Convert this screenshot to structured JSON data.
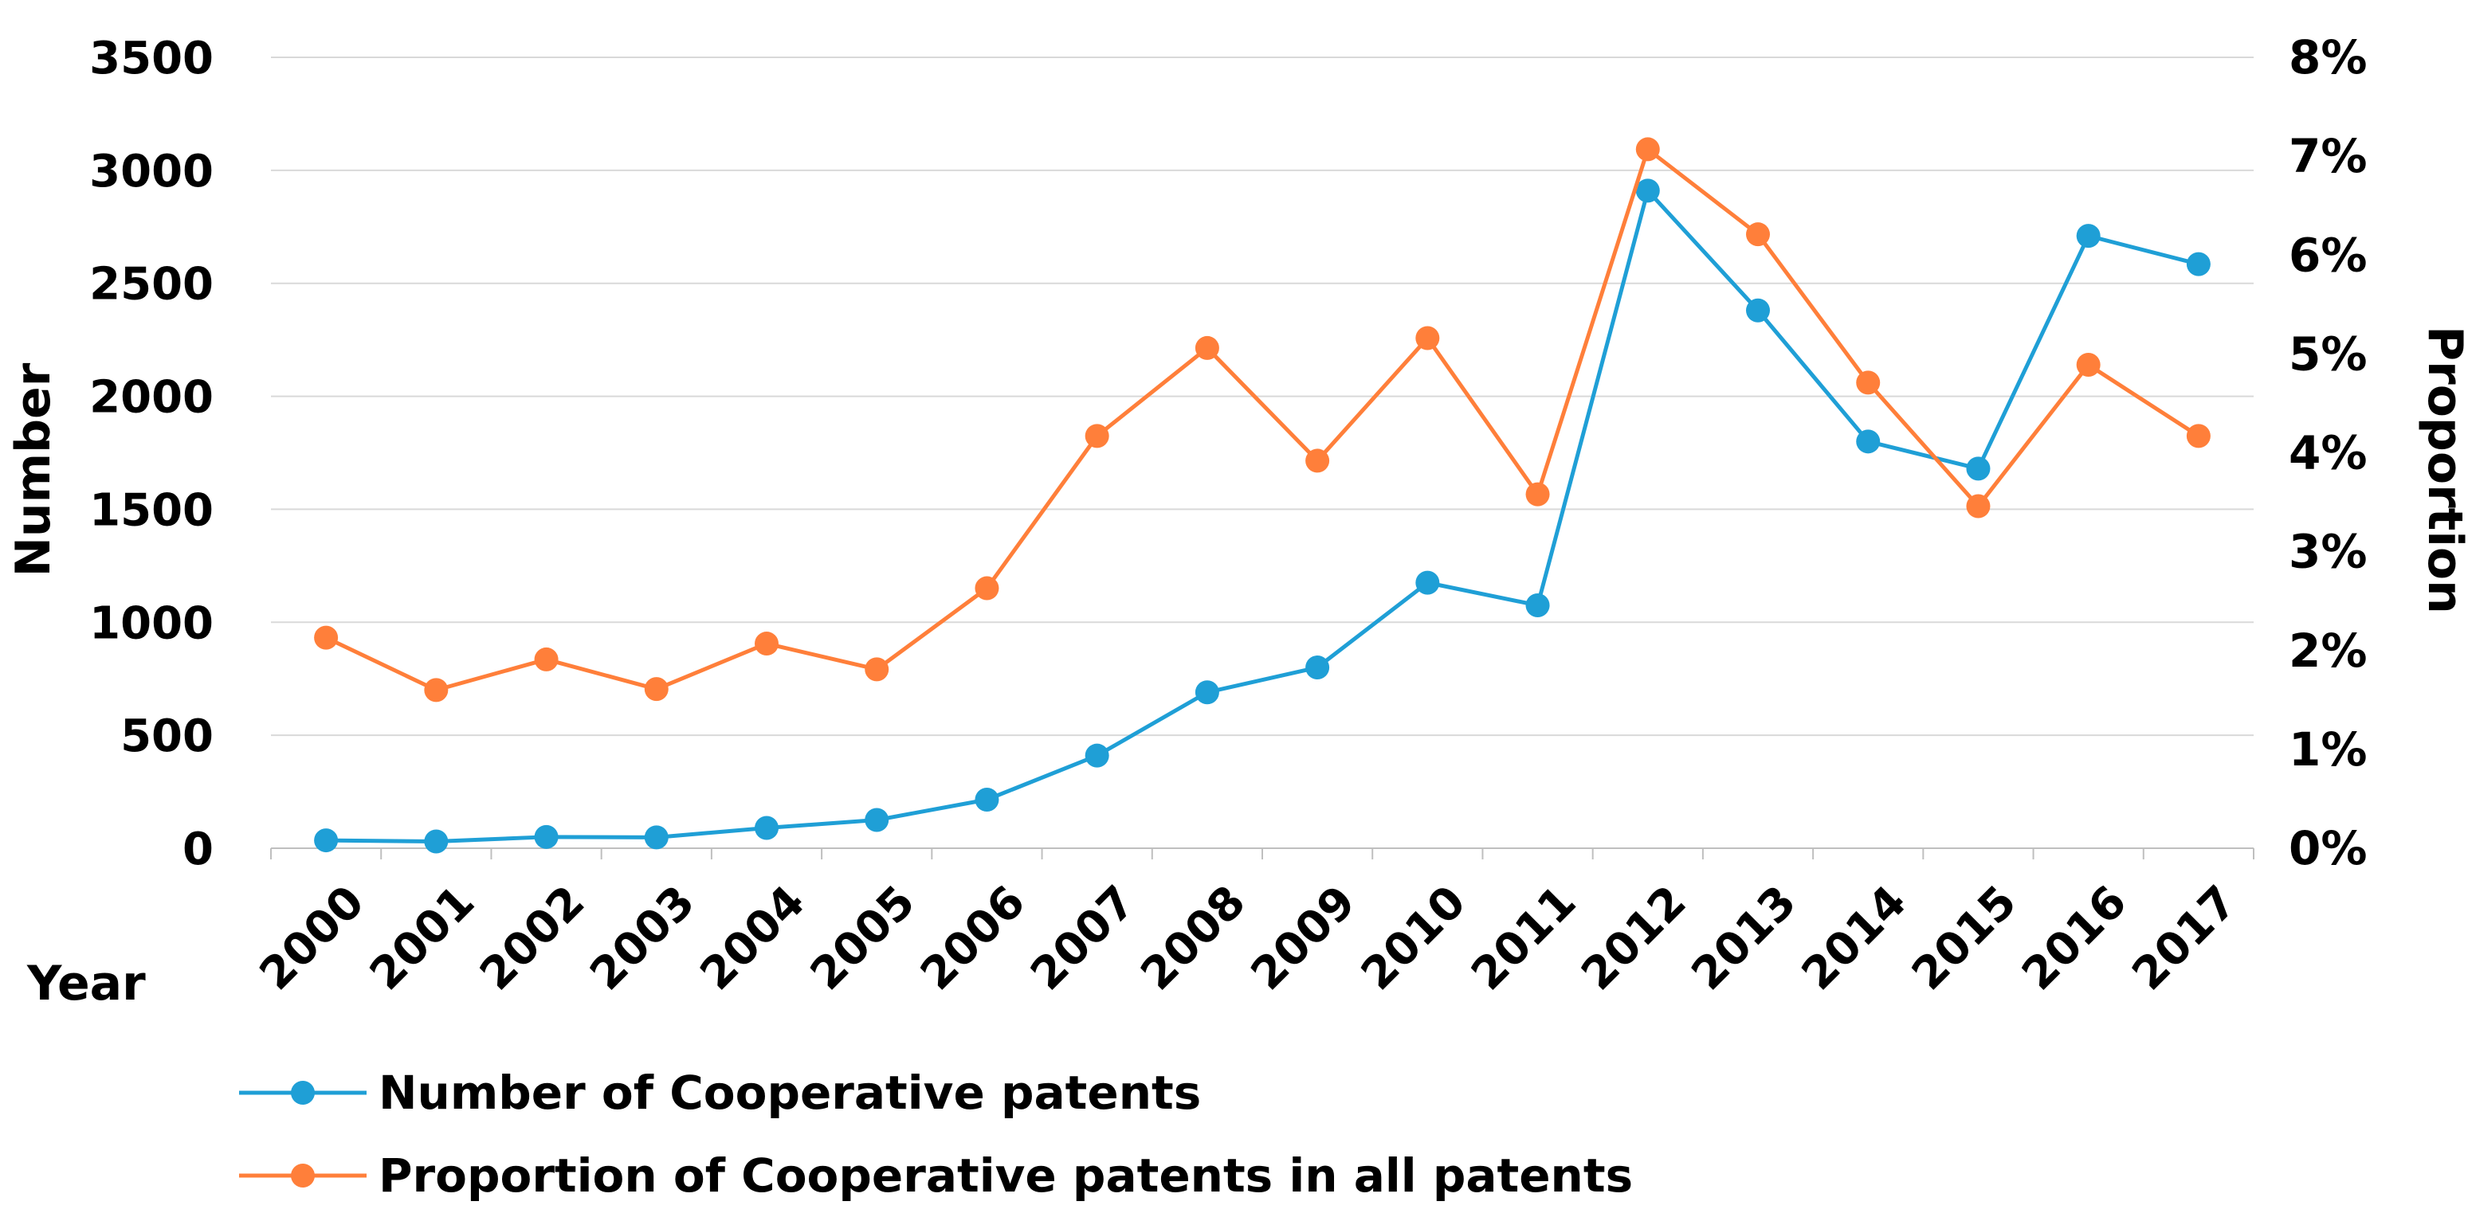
{
  "chart_data": {
    "type": "line",
    "x": [
      "2000",
      "2001",
      "2002",
      "2003",
      "2004",
      "2005",
      "2006",
      "2007",
      "2008",
      "2009",
      "2010",
      "2011",
      "2012",
      "2013",
      "2014",
      "2015",
      "2016",
      "2017"
    ],
    "xlabel": "Year",
    "ylabel": "Number",
    "y2label": "Proportion",
    "ylim": [
      0,
      3500
    ],
    "yticks": [
      "0",
      "500",
      "1000",
      "1500",
      "2000",
      "2500",
      "3000",
      "3500"
    ],
    "y2lim": [
      0,
      8
    ],
    "y2ticks": [
      "0%",
      "1%",
      "2%",
      "3%",
      "4%",
      "5%",
      "6%",
      "7%",
      "8%"
    ],
    "grid": true,
    "legend_position": "bottom",
    "series": [
      {
        "name": "Number of Cooperative patents",
        "axis": "left",
        "unit": "count",
        "color": "#1f9fd6",
        "values": [
          35,
          30,
          50,
          48,
          90,
          125,
          215,
          410,
          690,
          800,
          1175,
          1075,
          2910,
          2380,
          1800,
          1680,
          2710,
          2585
        ]
      },
      {
        "name": "Proportion of Cooperative patents in all patents",
        "axis": "right",
        "unit": "percent",
        "color": "#ff7f3a",
        "values": [
          2.13,
          1.6,
          1.91,
          1.61,
          2.07,
          1.81,
          2.63,
          4.17,
          5.06,
          3.92,
          5.16,
          3.58,
          7.07,
          6.21,
          4.71,
          3.46,
          4.89,
          4.17
        ]
      }
    ]
  }
}
